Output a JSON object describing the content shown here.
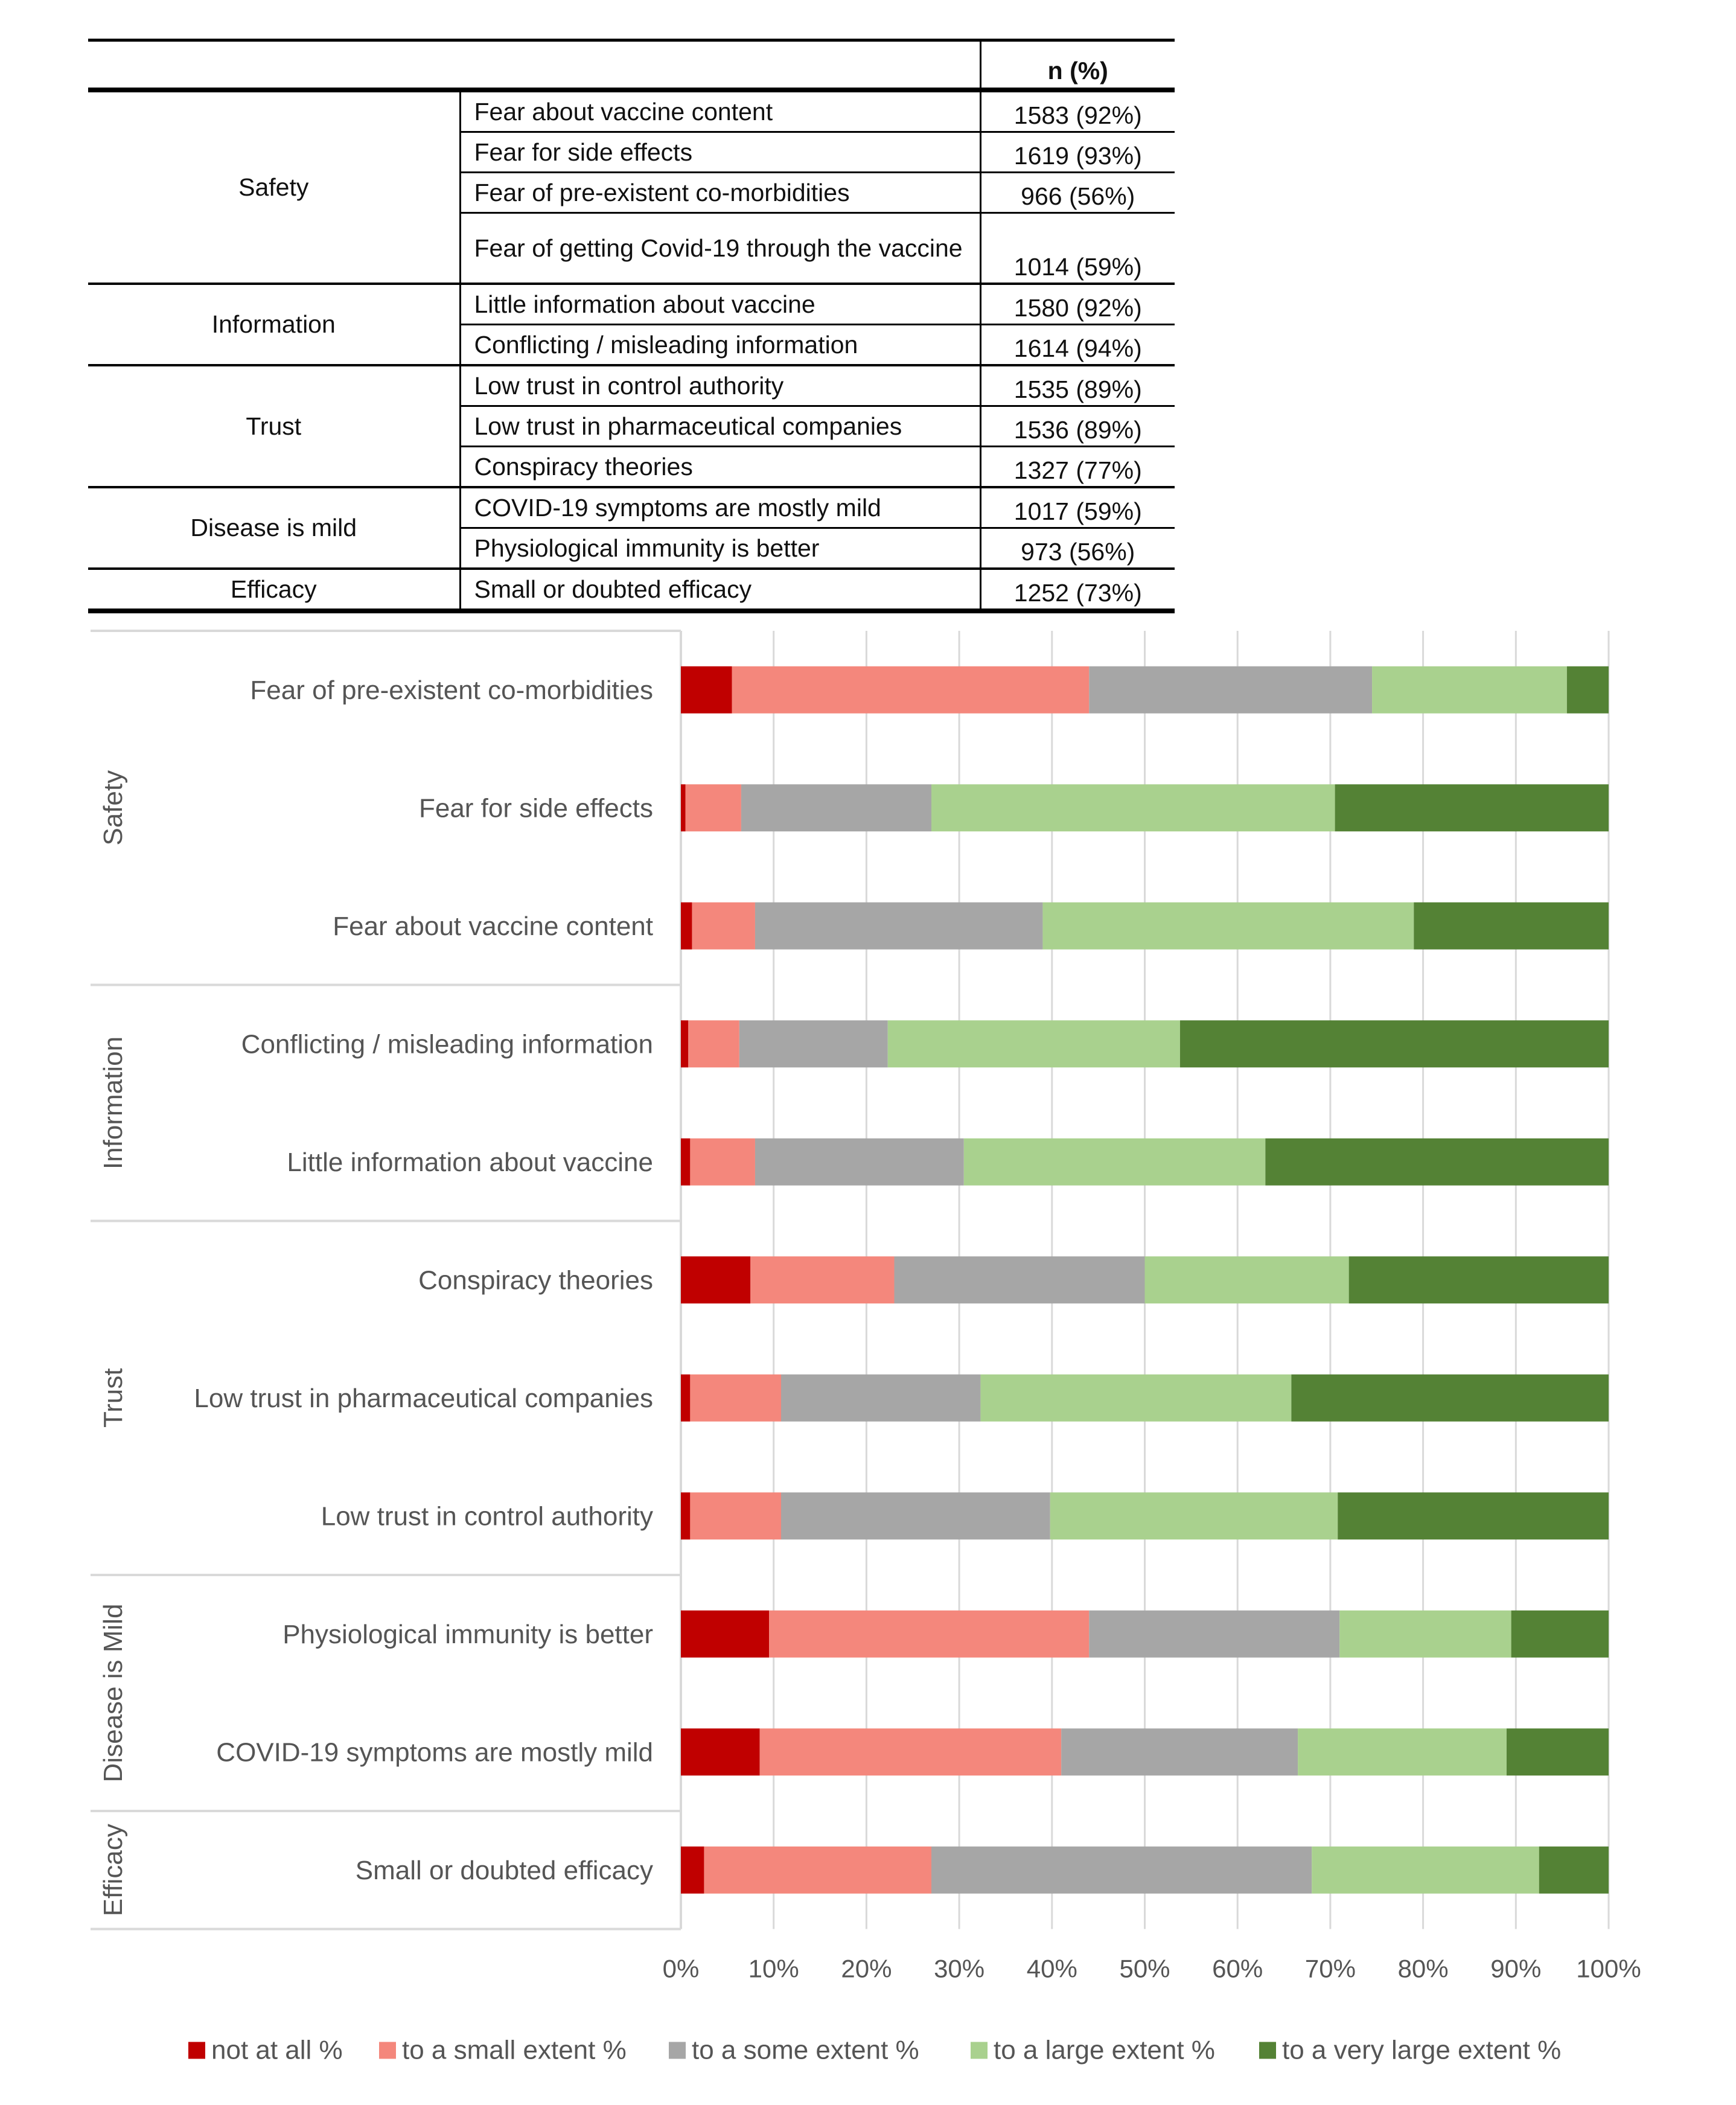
{
  "table": {
    "header": "n (%)",
    "groups": [
      {
        "category": "Safety",
        "rows": [
          {
            "item": "Fear about vaccine content",
            "value": "1583 (92%)"
          },
          {
            "item": "Fear for side effects",
            "value": "1619 (93%)"
          },
          {
            "item": "Fear of pre-existent co-morbidities",
            "value": "966 (56%)"
          },
          {
            "item": "Fear of getting Covid-19 through the vaccine",
            "value": "1014 (59%)"
          }
        ]
      },
      {
        "category": "Information",
        "rows": [
          {
            "item": "Little information about vaccine",
            "value": "1580 (92%)"
          },
          {
            "item": "Conflicting / misleading information",
            "value": "1614 (94%)"
          }
        ]
      },
      {
        "category": "Trust",
        "rows": [
          {
            "item": "Low trust in control authority",
            "value": "1535 (89%)"
          },
          {
            "item": "Low trust in pharmaceutical companies",
            "value": "1536 (89%)"
          },
          {
            "item": "Conspiracy theories",
            "value": "1327 (77%)"
          }
        ]
      },
      {
        "category": "Disease is mild",
        "rows": [
          {
            "item": "COVID-19 symptoms are mostly mild",
            "value": "1017 (59%)"
          },
          {
            "item": "Physiological immunity is better",
            "value": "973 (56%)"
          }
        ]
      },
      {
        "category": "Efficacy",
        "rows": [
          {
            "item": "Small or doubted efficacy",
            "value": "1252 (73%)"
          }
        ]
      }
    ]
  },
  "chart_data": {
    "type": "bar",
    "orientation": "horizontal",
    "stacked": "100%",
    "title": "",
    "xlabel": "",
    "ylabel": "",
    "xlim": [
      0,
      100
    ],
    "x_ticks": [
      "0%",
      "10%",
      "20%",
      "30%",
      "40%",
      "50%",
      "60%",
      "70%",
      "80%",
      "90%",
      "100%"
    ],
    "grid": true,
    "legend_position": "bottom",
    "groups": [
      {
        "name": "Safety",
        "categories": [
          "Fear of pre-existent co-morbidities",
          "Fear for side effects",
          "Fear about vaccine content"
        ]
      },
      {
        "name": "Information",
        "categories": [
          "Conflicting / misleading information",
          "Little information about vaccine"
        ]
      },
      {
        "name": "Trust",
        "categories": [
          "Conspiracy theories",
          "Low trust in pharmaceutical companies",
          "Low trust in control authority"
        ]
      },
      {
        "name": "Disease is Mild",
        "categories": [
          "Physiological immunity is better",
          "COVID-19 symptoms are mostly mild"
        ]
      },
      {
        "name": "Efficacy",
        "categories": [
          "Small or doubted efficacy"
        ]
      }
    ],
    "categories": [
      "Fear of pre-existent co-morbidities",
      "Fear for side effects",
      "Fear about vaccine content",
      "Conflicting / misleading information",
      "Little information about vaccine",
      "Conspiracy theories",
      "Low trust in pharmaceutical companies",
      "Low trust in control authority",
      "Physiological immunity is better",
      "COVID-19 symptoms are mostly mild",
      "Small or doubted efficacy"
    ],
    "series": [
      {
        "name": "not at all %",
        "color": "#c00000",
        "values": [
          5.5,
          0.5,
          1.2,
          0.8,
          1.0,
          7.5,
          1.0,
          1.0,
          9.5,
          8.5,
          2.5
        ]
      },
      {
        "name": "to a small extent %",
        "color": "#f4877c",
        "values": [
          38.5,
          6.0,
          6.8,
          5.5,
          7.0,
          15.5,
          9.8,
          9.8,
          34.5,
          32.5,
          24.5
        ]
      },
      {
        "name": "to a some extent  %",
        "color": "#a6a6a6",
        "values": [
          30.5,
          20.5,
          31.0,
          16.0,
          22.5,
          27.0,
          21.5,
          29.0,
          27.0,
          25.5,
          41.0
        ]
      },
      {
        "name": "to a large extent  %",
        "color": "#a9d18e",
        "values": [
          21.0,
          43.5,
          40.0,
          31.5,
          32.5,
          22.0,
          33.5,
          31.0,
          18.5,
          22.5,
          24.5
        ]
      },
      {
        "name": "to a very large extent  %",
        "color": "#548235",
        "values": [
          4.5,
          29.5,
          21.0,
          46.2,
          37.0,
          28.0,
          34.2,
          29.2,
          10.5,
          11.0,
          7.5
        ]
      }
    ]
  }
}
